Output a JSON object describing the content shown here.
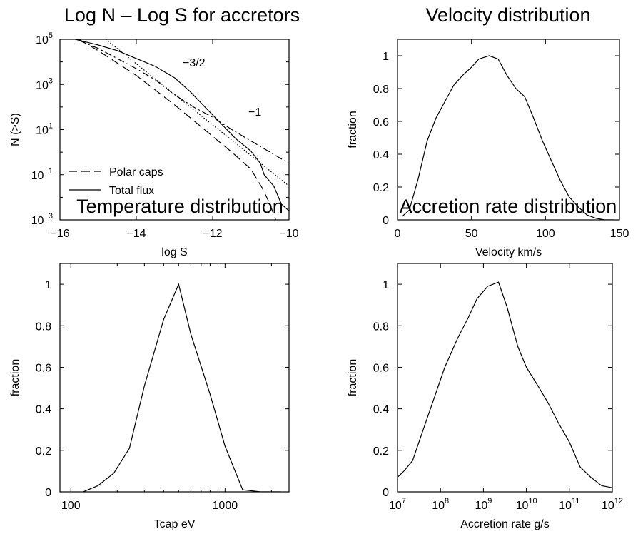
{
  "chart_data": [
    {
      "id": "lognlogs",
      "type": "line",
      "title": "Log N – Log S  for accretors",
      "xlabel": "log S",
      "ylabel": "N (>S)",
      "xlim": [
        -16,
        -10
      ],
      "ylim_log10": [
        -3,
        5
      ],
      "y_log": true,
      "x_ticks": [
        -16,
        -14,
        -12,
        -10
      ],
      "x_tick_labels": [
        "−16",
        "−14",
        "−12",
        "−10"
      ],
      "y_ticks_log10": [
        -3,
        -1,
        1,
        3,
        5
      ],
      "y_tick_bases": [
        "10",
        "10",
        "10",
        "10",
        "10"
      ],
      "y_tick_exps": [
        "−3",
        "−1",
        "1",
        "3",
        "5"
      ],
      "annotations": [
        "−3/2",
        "−1"
      ],
      "legend": {
        "position": "bottom-left",
        "entries": [
          "Polar caps",
          "Total flux"
        ]
      },
      "series": [
        {
          "name": "Total flux",
          "style": "solid",
          "points": [
            [
              -15.6,
              5.0
            ],
            [
              -15.0,
              4.75
            ],
            [
              -14.5,
              4.5
            ],
            [
              -14.0,
              4.15
            ],
            [
              -13.5,
              3.8
            ],
            [
              -13.0,
              3.3
            ],
            [
              -12.6,
              2.7
            ],
            [
              -12.2,
              2.0
            ],
            [
              -11.8,
              1.3
            ],
            [
              -11.4,
              0.6
            ],
            [
              -11.0,
              0.05
            ],
            [
              -10.75,
              -0.5
            ],
            [
              -10.65,
              -1.0
            ],
            [
              -10.4,
              -1.5
            ],
            [
              -10.2,
              -2.3
            ],
            [
              -10.0,
              -2.6
            ]
          ]
        },
        {
          "name": "Polar caps",
          "style": "dashed",
          "points": [
            [
              -15.5,
              5.0
            ],
            [
              -15.0,
              4.5
            ],
            [
              -14.5,
              3.95
            ],
            [
              -14.0,
              3.4
            ],
            [
              -13.5,
              2.75
            ],
            [
              -13.0,
              2.1
            ],
            [
              -12.5,
              1.4
            ],
            [
              -12.0,
              0.7
            ],
            [
              -11.5,
              0.0
            ],
            [
              -11.0,
              -0.75
            ],
            [
              -10.7,
              -1.6
            ],
            [
              -10.5,
              -2.3
            ],
            [
              -10.35,
              -3.0
            ]
          ]
        },
        {
          "style": "dash-dot",
          "points": [
            [
              -15.5,
              4.95
            ],
            [
              -15.0,
              4.6
            ],
            [
              -14.5,
              4.15
            ],
            [
              -14.0,
              3.7
            ],
            [
              -13.5,
              3.2
            ],
            [
              -13.0,
              2.55
            ],
            [
              -12.5,
              2.0
            ],
            [
              -12.0,
              1.55
            ],
            [
              -11.5,
              1.0
            ],
            [
              -11.0,
              0.5
            ],
            [
              -10.5,
              0.0
            ],
            [
              -10.0,
              -0.5
            ]
          ]
        },
        {
          "style": "dotted",
          "points": [
            [
              -14.8,
              5.0
            ],
            [
              -10.0,
              -1.5
            ]
          ]
        }
      ]
    },
    {
      "id": "velocity",
      "type": "line",
      "title": "Velocity distribution",
      "xlabel": "Velocity km/s",
      "ylabel": "fraction",
      "xlim": [
        0,
        150
      ],
      "ylim": [
        0,
        1.1
      ],
      "x_ticks": [
        0,
        50,
        100,
        150
      ],
      "x_tick_labels": [
        "0",
        "50",
        "100",
        "150"
      ],
      "y_ticks": [
        0,
        0.2,
        0.4,
        0.6,
        0.8,
        1
      ],
      "y_tick_labels": [
        "0",
        "0.2",
        "0.4",
        "0.6",
        "0.8",
        "1"
      ],
      "x": [
        3,
        8,
        14,
        20,
        26,
        32,
        38,
        44,
        50,
        55,
        62,
        68,
        74,
        80,
        86,
        92,
        98,
        104,
        110,
        116,
        122,
        128,
        134,
        140,
        146
      ],
      "y": [
        0.02,
        0.06,
        0.25,
        0.48,
        0.62,
        0.72,
        0.82,
        0.88,
        0.93,
        0.98,
        1.0,
        0.98,
        0.88,
        0.8,
        0.75,
        0.62,
        0.48,
        0.36,
        0.24,
        0.14,
        0.08,
        0.03,
        0.01,
        0.0,
        0.0
      ]
    },
    {
      "id": "temperature",
      "type": "line",
      "title": "Temperature distribution",
      "xlabel": "Tcap eV",
      "ylabel": "fraction",
      "x_log": true,
      "xlim": [
        85,
        2600
      ],
      "ylim": [
        0,
        1.1
      ],
      "x_ticks": [
        100,
        1000
      ],
      "x_tick_labels": [
        "100",
        "1000"
      ],
      "y_ticks": [
        0,
        0.2,
        0.4,
        0.6,
        0.8,
        1
      ],
      "y_tick_labels": [
        "0",
        "0.2",
        "0.4",
        "0.6",
        "0.8",
        "1"
      ],
      "x": [
        120,
        150,
        190,
        240,
        300,
        400,
        500,
        600,
        800,
        1000,
        1300,
        1700,
        2300
      ],
      "y": [
        0.0,
        0.03,
        0.09,
        0.21,
        0.51,
        0.83,
        1.0,
        0.76,
        0.47,
        0.22,
        0.01,
        0.0,
        0.0
      ]
    },
    {
      "id": "accretion",
      "type": "line",
      "title": "Accretion rate distribution",
      "xlabel": "Accretion rate g/s",
      "ylabel": "fraction",
      "x_log": true,
      "xlim_log10": [
        7,
        12
      ],
      "ylim": [
        0,
        1.1
      ],
      "x_ticks_log10": [
        7,
        8,
        9,
        10,
        11,
        12
      ],
      "x_tick_bases": [
        "10",
        "10",
        "10",
        "10",
        "10",
        "10"
      ],
      "x_tick_exps": [
        "7",
        "8",
        "9",
        "10",
        "11",
        "12"
      ],
      "y_ticks": [
        0,
        0.2,
        0.4,
        0.6,
        0.8,
        1
      ],
      "y_tick_labels": [
        "0",
        "0.2",
        "0.4",
        "0.6",
        "0.8",
        "1"
      ],
      "x": [
        7.0,
        7.15,
        7.35,
        7.6,
        7.85,
        8.1,
        8.4,
        8.65,
        8.85,
        9.1,
        9.35,
        9.55,
        9.8,
        10.0,
        10.3,
        10.5,
        10.75,
        11.0,
        11.25,
        11.5,
        11.75,
        12.0
      ],
      "y": [
        0.07,
        0.1,
        0.15,
        0.3,
        0.45,
        0.6,
        0.74,
        0.84,
        0.93,
        0.99,
        1.01,
        0.89,
        0.7,
        0.6,
        0.5,
        0.43,
        0.33,
        0.24,
        0.12,
        0.07,
        0.03,
        0.02
      ]
    }
  ]
}
